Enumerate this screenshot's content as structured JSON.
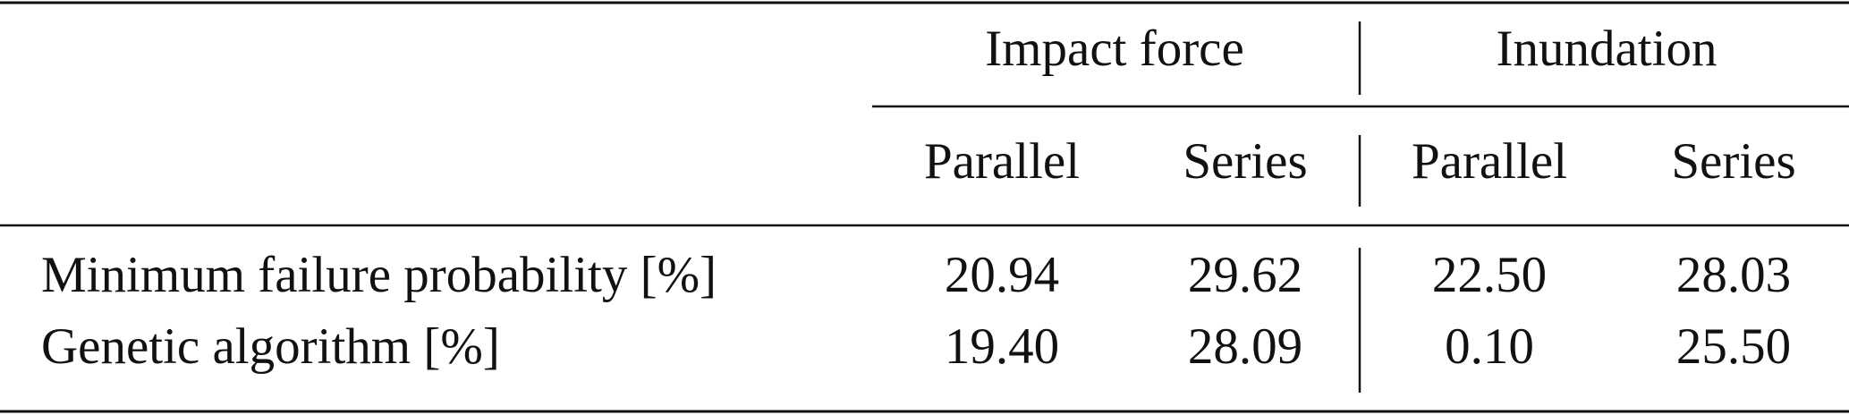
{
  "table": {
    "groups": [
      "Impact force",
      "Inundation"
    ],
    "columns": [
      "Parallel",
      "Series",
      "Parallel",
      "Series"
    ],
    "rows": [
      [
        "Minimum failure probability [%]",
        "20.94",
        "29.62",
        "22.50",
        "28.03"
      ],
      [
        "Genetic algorithm [%]",
        "19.40",
        "28.09",
        "0.10",
        "25.50"
      ]
    ]
  }
}
